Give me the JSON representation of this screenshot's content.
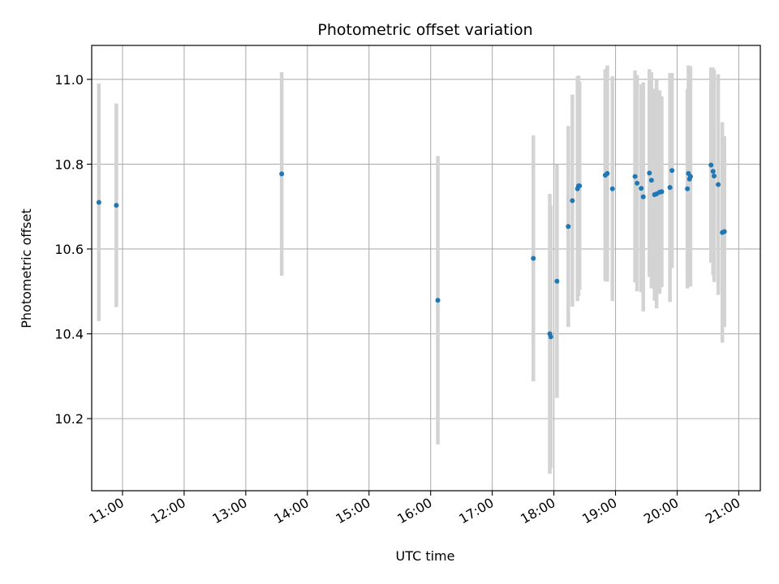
{
  "chart_data": {
    "type": "scatter",
    "title": "Photometric offset variation",
    "xlabel": "UTC time",
    "ylabel": "Photometric offset",
    "x_ticks": [
      "11:00",
      "12:00",
      "13:00",
      "14:00",
      "15:00",
      "16:00",
      "17:00",
      "18:00",
      "19:00",
      "20:00",
      "21:00"
    ],
    "y_ticks": [
      "10.2",
      "10.4",
      "10.6",
      "10.8",
      "11.0"
    ],
    "xlim": [
      "10:30",
      "21:21"
    ],
    "ylim": [
      10.03,
      11.08
    ],
    "grid": true,
    "colors": {
      "points": "#1f77b4",
      "error_bars": "#d3d3d3",
      "grid": "#b0b0b0"
    },
    "points": [
      {
        "x": "10:37",
        "y": 10.71,
        "yerr": 0.28
      },
      {
        "x": "10:54",
        "y": 10.703,
        "yerr": 0.24
      },
      {
        "x": "13:35",
        "y": 10.777,
        "yerr": 0.24
      },
      {
        "x": "16:07",
        "y": 10.479,
        "yerr": 0.34
      },
      {
        "x": "17:40",
        "y": 10.578,
        "yerr": 0.29
      },
      {
        "x": "17:56",
        "y": 10.4,
        "yerr": 0.33
      },
      {
        "x": "17:57",
        "y": 10.393,
        "yerr": 0.31
      },
      {
        "x": "18:03",
        "y": 10.524,
        "yerr": 0.275
      },
      {
        "x": "18:14",
        "y": 10.653,
        "yerr": 0.237
      },
      {
        "x": "18:18",
        "y": 10.714,
        "yerr": 0.25
      },
      {
        "x": "18:23",
        "y": 10.742,
        "yerr": 0.265
      },
      {
        "x": "18:24",
        "y": 10.749,
        "yerr": 0.26
      },
      {
        "x": "18:25",
        "y": 10.749,
        "yerr": 0.245
      },
      {
        "x": "18:50",
        "y": 10.774,
        "yerr": 0.25
      },
      {
        "x": "18:52",
        "y": 10.778,
        "yerr": 0.255
      },
      {
        "x": "18:57",
        "y": 10.742,
        "yerr": 0.265
      },
      {
        "x": "19:19",
        "y": 10.771,
        "yerr": 0.25
      },
      {
        "x": "19:21",
        "y": 10.755,
        "yerr": 0.255
      },
      {
        "x": "19:25",
        "y": 10.743,
        "yerr": 0.245
      },
      {
        "x": "19:27",
        "y": 10.723,
        "yerr": 0.27
      },
      {
        "x": "19:33",
        "y": 10.779,
        "yerr": 0.245
      },
      {
        "x": "19:35",
        "y": 10.762,
        "yerr": 0.255
      },
      {
        "x": "19:38",
        "y": 10.728,
        "yerr": 0.25
      },
      {
        "x": "19:40",
        "y": 10.73,
        "yerr": 0.27
      },
      {
        "x": "19:43",
        "y": 10.734,
        "yerr": 0.24
      },
      {
        "x": "19:45",
        "y": 10.735,
        "yerr": 0.225
      },
      {
        "x": "19:53",
        "y": 10.745,
        "yerr": 0.27
      },
      {
        "x": "19:55",
        "y": 10.785,
        "yerr": 0.23
      },
      {
        "x": "20:10",
        "y": 10.742,
        "yerr": 0.235
      },
      {
        "x": "20:11",
        "y": 10.778,
        "yerr": 0.255
      },
      {
        "x": "20:12",
        "y": 10.765,
        "yerr": 0.24
      },
      {
        "x": "20:13",
        "y": 10.771,
        "yerr": 0.26
      },
      {
        "x": "20:33",
        "y": 10.798,
        "yerr": 0.23
      },
      {
        "x": "20:35",
        "y": 10.783,
        "yerr": 0.245
      },
      {
        "x": "20:36",
        "y": 10.772,
        "yerr": 0.25
      },
      {
        "x": "20:40",
        "y": 10.752,
        "yerr": 0.26
      },
      {
        "x": "20:44",
        "y": 10.639,
        "yerr": 0.26
      },
      {
        "x": "20:46",
        "y": 10.641,
        "yerr": 0.225
      }
    ]
  }
}
